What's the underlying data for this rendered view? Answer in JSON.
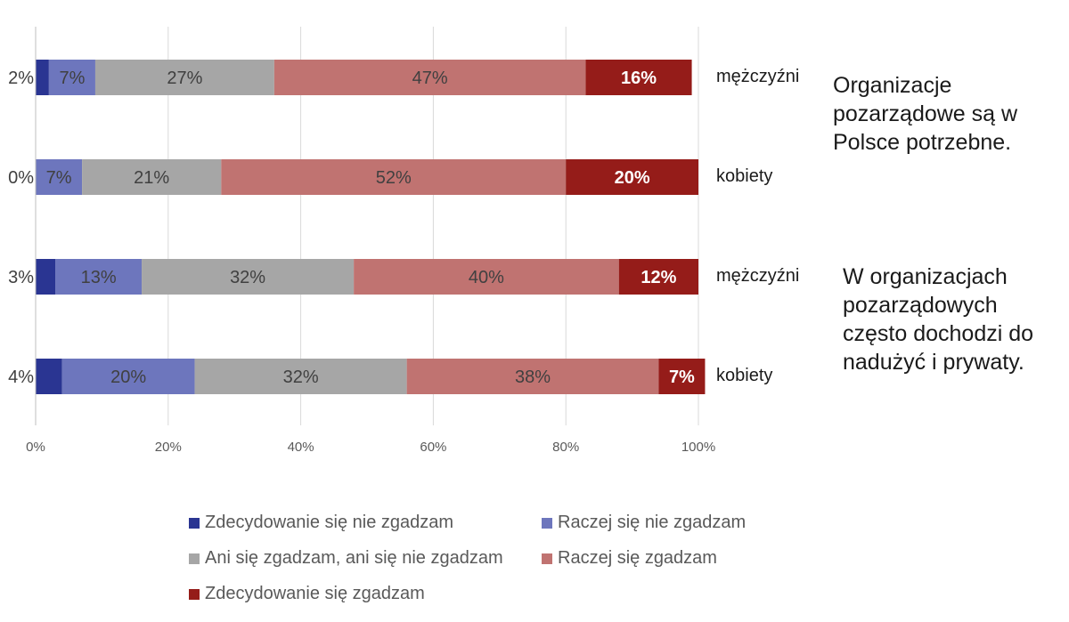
{
  "chart_data": {
    "type": "bar",
    "orientation": "horizontal",
    "stacked": true,
    "xlim": [
      0,
      100
    ],
    "x_tick_labels": [
      "0%",
      "20%",
      "40%",
      "60%",
      "80%",
      "100%"
    ],
    "grid": true,
    "legend_position": "bottom",
    "groups": [
      {
        "title": "Organizacje pozarządowe są w Polsce potrzebne.",
        "rows": [
          {
            "label": "mężczyźni",
            "values": [
              2,
              7,
              27,
              47,
              16
            ],
            "value_labels": [
              "2%",
              "7%",
              "27%",
              "47%",
              "16%"
            ]
          },
          {
            "label": "kobiety",
            "values": [
              0,
              7,
              21,
              52,
              20
            ],
            "value_labels": [
              "0%",
              "7%",
              "21%",
              "52%",
              "20%"
            ]
          }
        ]
      },
      {
        "title": "W organizacjach pozarządowych często dochodzi do nadużyć i prywaty.",
        "rows": [
          {
            "label": "mężczyźni",
            "values": [
              3,
              13,
              32,
              40,
              12
            ],
            "value_labels": [
              "3%",
              "13%",
              "32%",
              "40%",
              "12%"
            ]
          },
          {
            "label": "kobiety",
            "values": [
              4,
              20,
              32,
              38,
              7
            ],
            "value_labels": [
              "4%",
              "20%",
              "32%",
              "38%",
              "7%"
            ]
          }
        ]
      }
    ],
    "series": [
      {
        "name": "Zdecydowanie się nie zgadzam",
        "color": "#2a3592"
      },
      {
        "name": "Raczej się nie zgadzam",
        "color": "#6d76bd"
      },
      {
        "name": "Ani się zgadzam, ani się nie zgadzam",
        "color": "#a6a6a6"
      },
      {
        "name": "Raczej się zgadzam",
        "color": "#c07371"
      },
      {
        "name": "Zdecydowanie się zgadzam",
        "color": "#951c19"
      }
    ]
  }
}
